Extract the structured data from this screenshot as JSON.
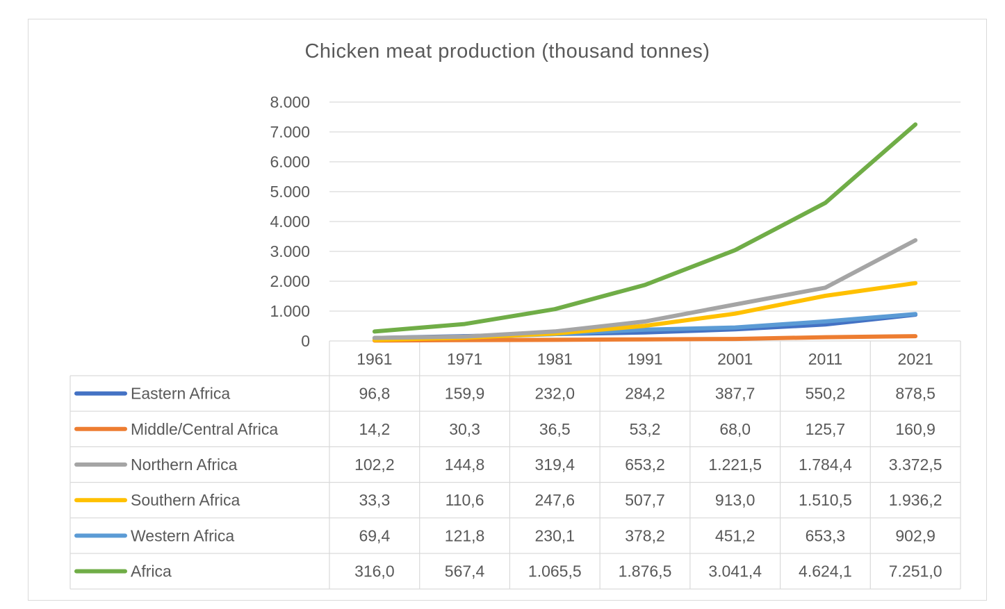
{
  "chart_data": {
    "type": "line",
    "title": "Chicken meat production (thousand tonnes)",
    "categories": [
      "1961",
      "1971",
      "1981",
      "1991",
      "2001",
      "2011",
      "2021"
    ],
    "ylim": [
      0,
      8000
    ],
    "yticks": [
      "0",
      "1.000",
      "2.000",
      "3.000",
      "4.000",
      "5.000",
      "6.000",
      "7.000",
      "8.000"
    ],
    "grid": true,
    "legend": "data-table",
    "series": [
      {
        "name": "Eastern Africa",
        "color": "#4472c4",
        "values": [
          96.8,
          159.9,
          232.0,
          284.2,
          387.7,
          550.2,
          878.5
        ],
        "labels": [
          "96,8",
          "159,9",
          "232,0",
          "284,2",
          "387,7",
          "550,2",
          "878,5"
        ]
      },
      {
        "name": "Middle/Central Africa",
        "color": "#ed7d31",
        "values": [
          14.2,
          30.3,
          36.5,
          53.2,
          68.0,
          125.7,
          160.9
        ],
        "labels": [
          "14,2",
          "30,3",
          "36,5",
          "53,2",
          "68,0",
          "125,7",
          "160,9"
        ]
      },
      {
        "name": "Northern Africa",
        "color": "#a5a5a5",
        "values": [
          102.2,
          144.8,
          319.4,
          653.2,
          1221.5,
          1784.4,
          3372.5
        ],
        "labels": [
          "102,2",
          "144,8",
          "319,4",
          "653,2",
          "1.221,5",
          "1.784,4",
          "3.372,5"
        ]
      },
      {
        "name": "Southern Africa",
        "color": "#ffc000",
        "values": [
          33.3,
          110.6,
          247.6,
          507.7,
          913.0,
          1510.5,
          1936.2
        ],
        "labels": [
          "33,3",
          "110,6",
          "247,6",
          "507,7",
          "913,0",
          "1.510,5",
          "1.936,2"
        ]
      },
      {
        "name": "Western Africa",
        "color": "#5b9bd5",
        "values": [
          69.4,
          121.8,
          230.1,
          378.2,
          451.2,
          653.3,
          902.9
        ],
        "labels": [
          "69,4",
          "121,8",
          "230,1",
          "378,2",
          "451,2",
          "653,3",
          "902,9"
        ]
      },
      {
        "name": "Africa",
        "color": "#70ad47",
        "values": [
          316.0,
          567.4,
          1065.5,
          1876.5,
          3041.4,
          4624.1,
          7251.0
        ],
        "labels": [
          "316,0",
          "567,4",
          "1.065,5",
          "1.876,5",
          "3.041,4",
          "4.624,1",
          "7.251,0"
        ]
      }
    ]
  }
}
